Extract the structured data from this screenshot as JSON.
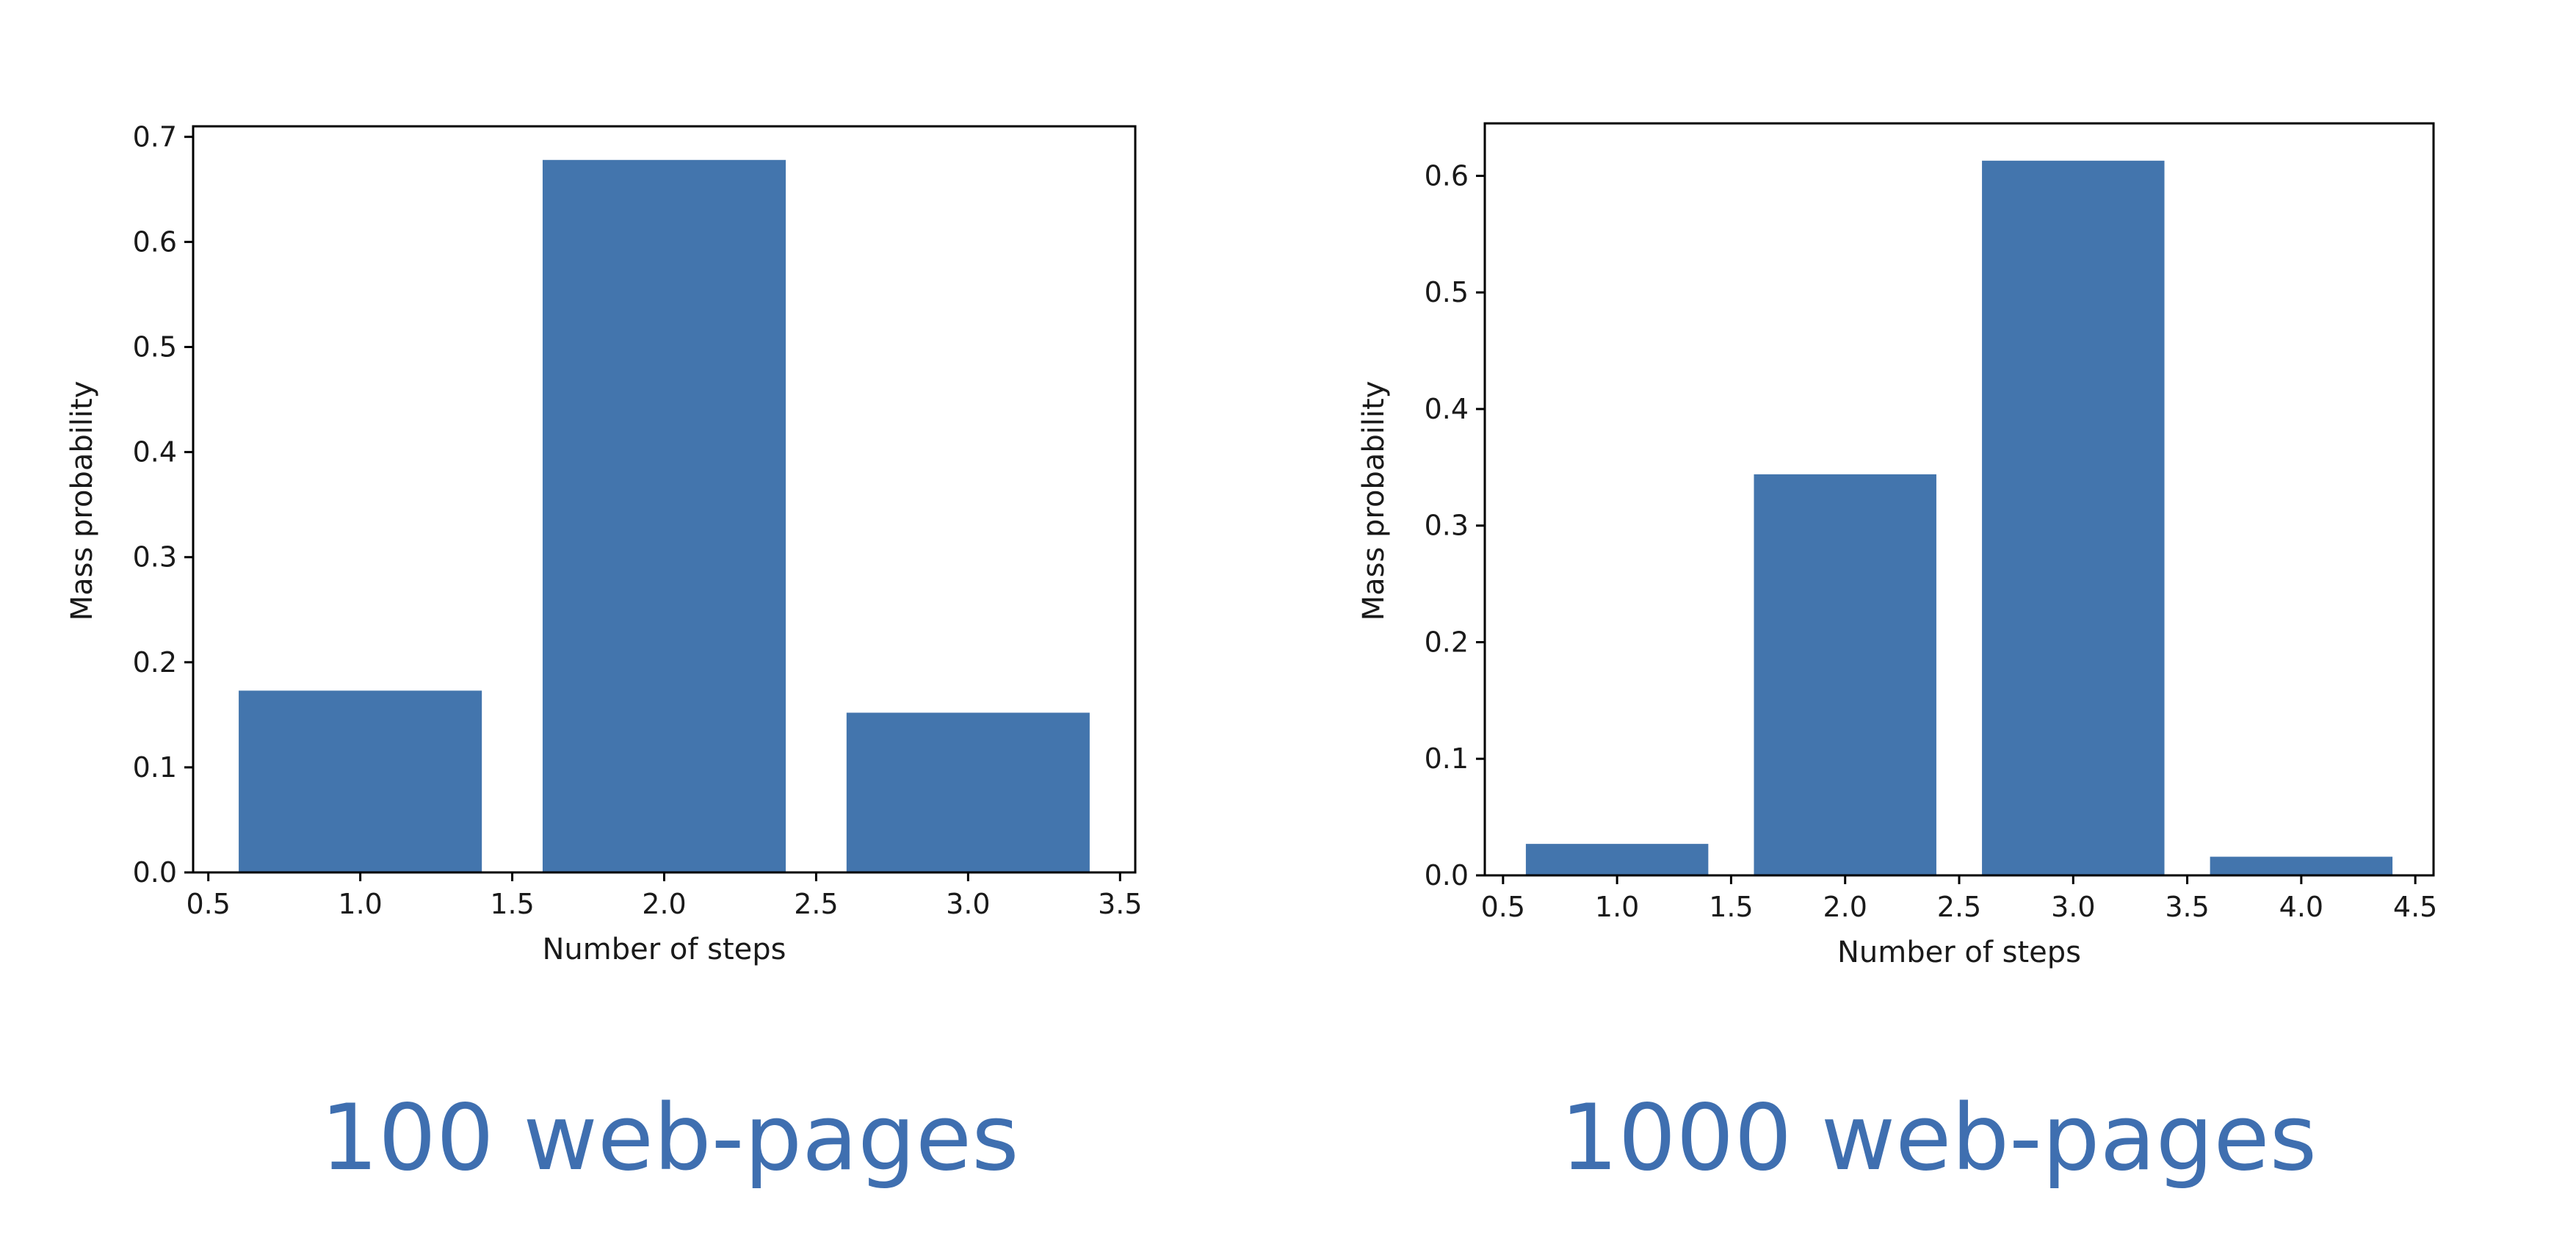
{
  "colors": {
    "bar": "#4375ad",
    "caption": "#3f6fb0"
  },
  "captions": [
    "100 web-pages",
    "1000 web-pages"
  ],
  "chart_data": [
    {
      "type": "bar",
      "x": [
        1.0,
        2.0,
        3.0
      ],
      "values": [
        0.173,
        0.678,
        0.152
      ],
      "bar_width": 0.8,
      "xlabel": "Number of steps",
      "ylabel": "Mass probability",
      "xlim": [
        0.45,
        3.55
      ],
      "ylim": [
        0.0,
        0.71
      ],
      "xticks": [
        0.5,
        1.0,
        1.5,
        2.0,
        2.5,
        3.0,
        3.5
      ],
      "xtick_labels": [
        "0.5",
        "1.0",
        "1.5",
        "2.0",
        "2.5",
        "3.0",
        "3.5"
      ],
      "yticks": [
        0.0,
        0.1,
        0.2,
        0.3,
        0.4,
        0.5,
        0.6,
        0.7
      ],
      "ytick_labels": [
        "0.0",
        "0.1",
        "0.2",
        "0.3",
        "0.4",
        "0.5",
        "0.6",
        "0.7"
      ],
      "grid": false,
      "legend": "none"
    },
    {
      "type": "bar",
      "x": [
        1.0,
        2.0,
        3.0,
        4.0
      ],
      "values": [
        0.027,
        0.344,
        0.613,
        0.016
      ],
      "bar_width": 0.8,
      "xlabel": "Number of steps",
      "ylabel": "Mass probability",
      "xlim": [
        0.42,
        4.58
      ],
      "ylim": [
        0.0,
        0.645
      ],
      "xticks": [
        0.5,
        1.0,
        1.5,
        2.0,
        2.5,
        3.0,
        3.5,
        4.0,
        4.5
      ],
      "xtick_labels": [
        "0.5",
        "1.0",
        "1.5",
        "2.0",
        "2.5",
        "3.0",
        "3.5",
        "4.0",
        "4.5"
      ],
      "yticks": [
        0.0,
        0.1,
        0.2,
        0.3,
        0.4,
        0.5,
        0.6
      ],
      "ytick_labels": [
        "0.0",
        "0.1",
        "0.2",
        "0.3",
        "0.4",
        "0.5",
        "0.6"
      ],
      "grid": false,
      "legend": "none"
    }
  ]
}
